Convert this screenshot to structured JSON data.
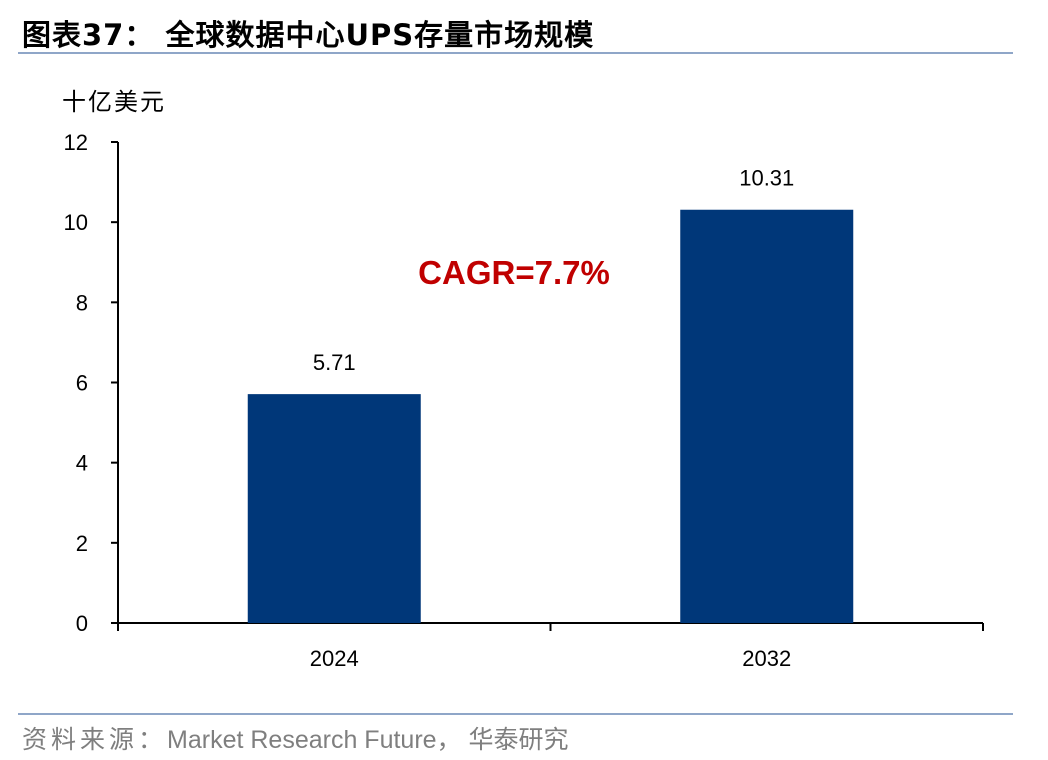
{
  "figure": {
    "title": "图表37：   全球数据中心UPS存量市场规模"
  },
  "source": {
    "label": "资料来源：",
    "text": "Market Research Future， 华泰研究"
  },
  "chart_data": {
    "type": "bar",
    "categories": [
      "2024",
      "2032"
    ],
    "values": [
      5.71,
      10.31
    ],
    "data_labels": [
      "5.71",
      "10.31"
    ],
    "ylabel": "十亿美元",
    "xlabel": "",
    "ylim": [
      0,
      12
    ],
    "yticks": [
      0,
      2,
      4,
      6,
      8,
      10,
      12
    ],
    "grid": false,
    "legend": "none",
    "bar_color": "#003779",
    "annotation": {
      "text": "CAGR=7.7%",
      "color": "#c00000"
    }
  }
}
